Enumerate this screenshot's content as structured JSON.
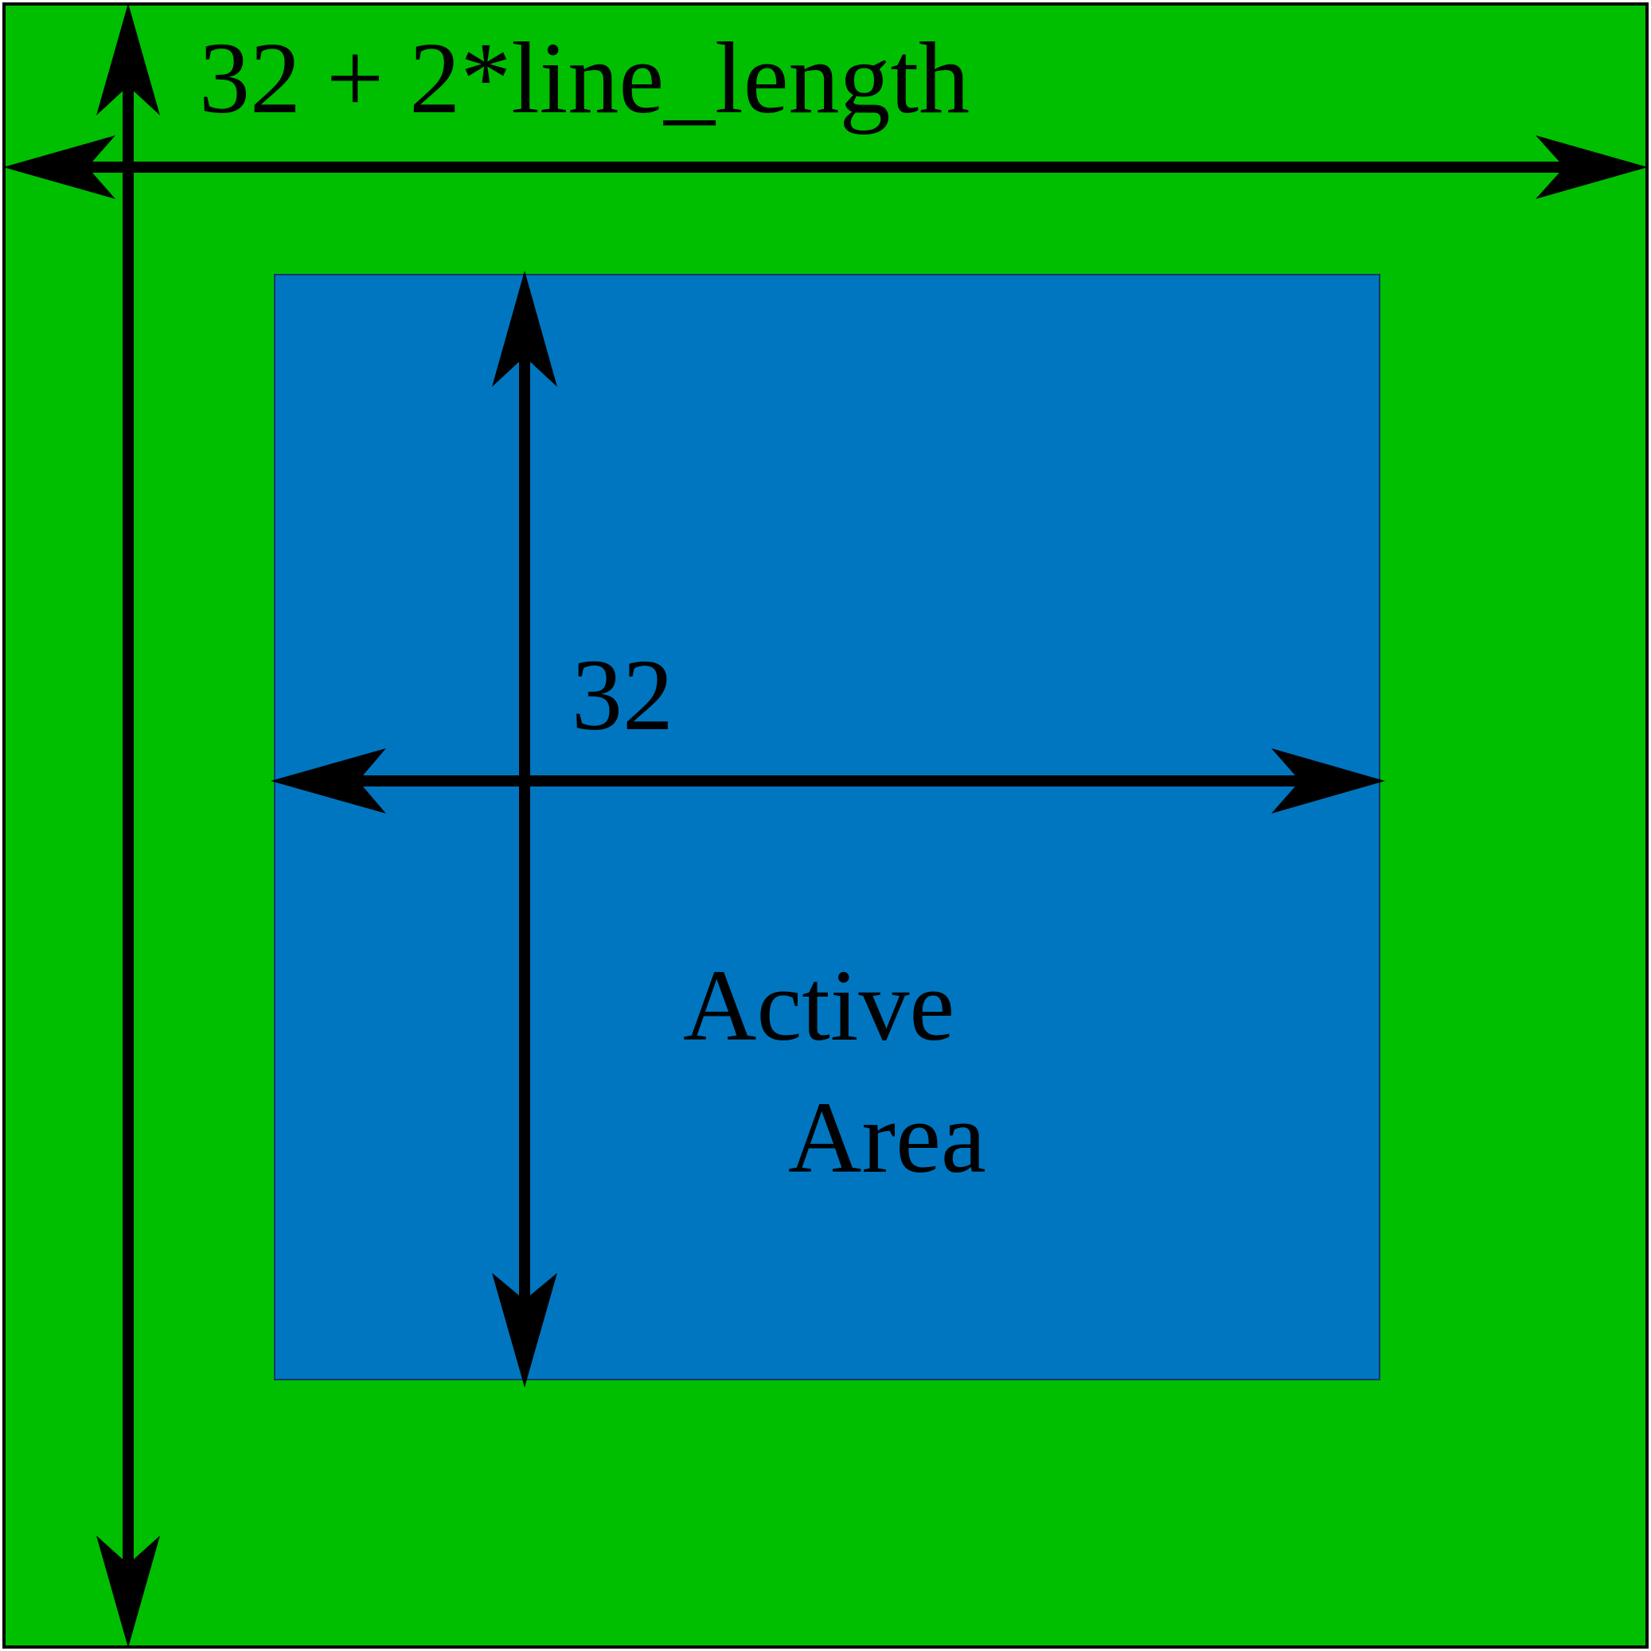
{
  "diagram": {
    "outer_dimension_label": "32 + 2*line_length",
    "inner_dimension_label": "32",
    "active_area_label_line1": "Active",
    "active_area_label_line2": "Area"
  },
  "colors": {
    "outer_region": "#00BF00",
    "inner_region": "#0076C0",
    "arrows": "#000000",
    "text": "#000000"
  }
}
